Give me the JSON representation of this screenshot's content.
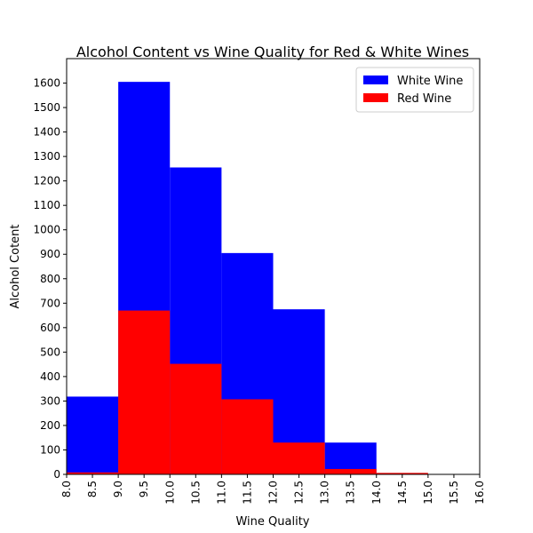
{
  "chart_data": {
    "type": "bar",
    "title": "Alcohol Content vs Wine Quality for Red & White Wines",
    "xlabel": "Wine Quality",
    "ylabel": "Alcohol Cotent",
    "xlim": [
      8.0,
      16.0
    ],
    "ylim": [
      0,
      1700
    ],
    "xticks": [
      "8.0",
      "8.5",
      "9.0",
      "9.5",
      "10.0",
      "10.5",
      "11.0",
      "11.5",
      "12.0",
      "12.5",
      "13.0",
      "13.5",
      "14.0",
      "14.5",
      "15.0",
      "15.5",
      "16.0"
    ],
    "yticks": [
      "0",
      "100",
      "200",
      "300",
      "400",
      "500",
      "600",
      "700",
      "800",
      "900",
      "1000",
      "1100",
      "1200",
      "1300",
      "1400",
      "1500",
      "1600"
    ],
    "bin_edges": [
      8,
      9,
      10,
      11,
      12,
      13,
      14,
      15,
      16
    ],
    "series": [
      {
        "name": "White Wine",
        "color": "#0000ff",
        "values": [
          318,
          1605,
          1255,
          905,
          675,
          130,
          0,
          0
        ]
      },
      {
        "name": "Red Wine",
        "color": "#ff0000",
        "values": [
          8,
          670,
          452,
          307,
          130,
          22,
          6,
          0
        ]
      }
    ],
    "legend_position": "top-right",
    "grid": false
  }
}
